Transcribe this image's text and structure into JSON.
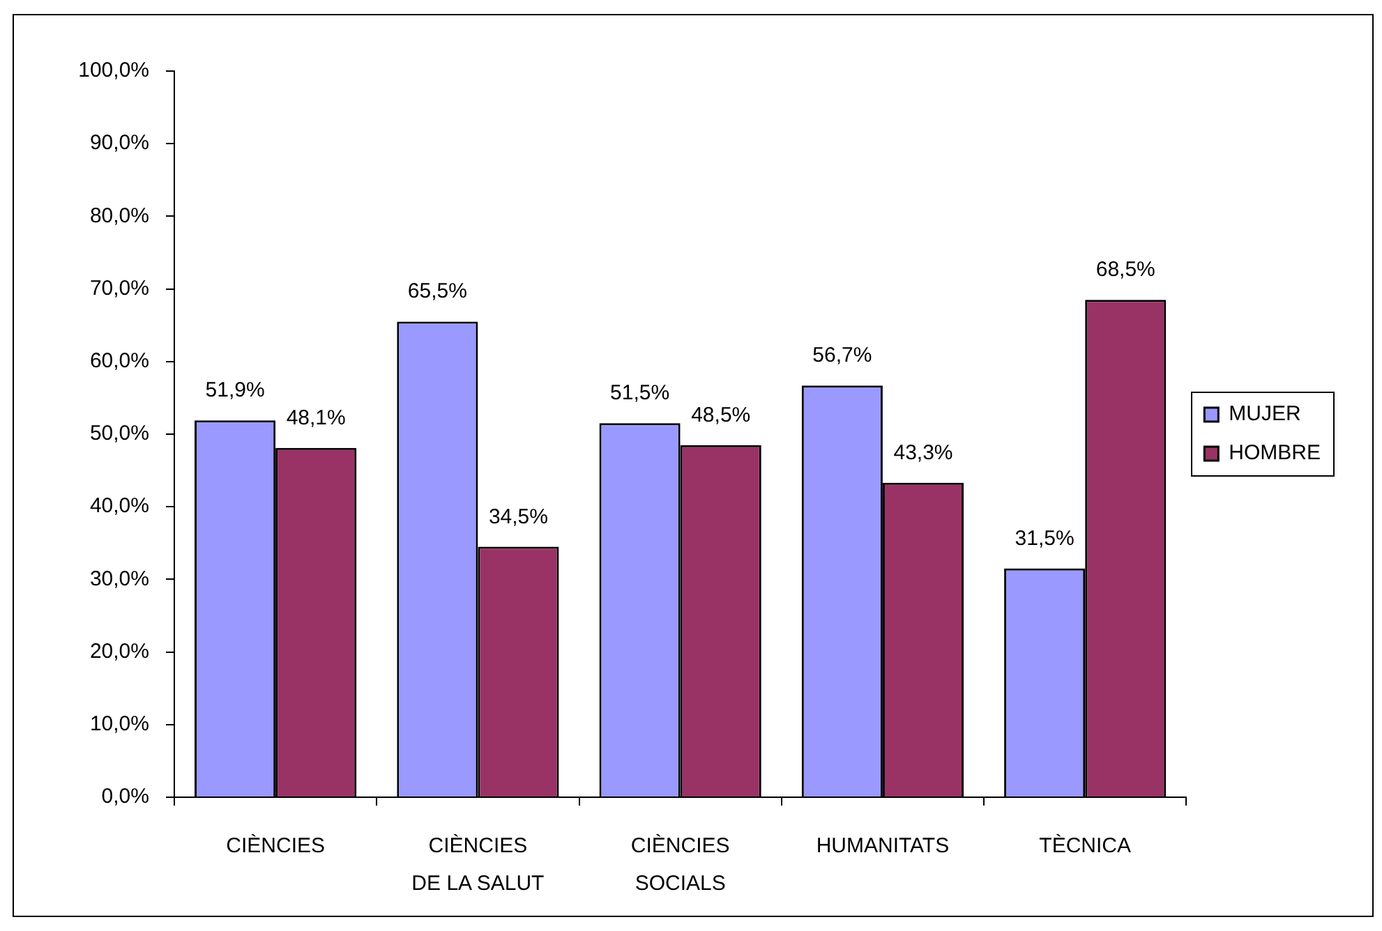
{
  "chart_data": {
    "type": "bar",
    "categories": [
      "CIÈNCIES",
      "CIÈNCIES\nDE LA SALUT",
      "CIÈNCIES\nSOCIALS",
      "HUMANITATS",
      "TÈCNICA"
    ],
    "series": [
      {
        "name": "MUJER",
        "color": "#9999ff",
        "values": [
          51.9,
          65.5,
          51.5,
          56.7,
          31.5
        ],
        "value_labels": [
          "51,9%",
          "65,5%",
          "51,5%",
          "56,7%",
          "31,5%"
        ]
      },
      {
        "name": "HOMBRE",
        "color": "#993366",
        "values": [
          48.1,
          34.5,
          48.5,
          43.3,
          68.5
        ],
        "value_labels": [
          "48,1%",
          "34,5%",
          "48,5%",
          "43,3%",
          "68,5%"
        ]
      }
    ],
    "ylim": [
      0,
      100
    ],
    "yticks": [
      {
        "value": 0,
        "label": "0,0%"
      },
      {
        "value": 10,
        "label": "10,0%"
      },
      {
        "value": 20,
        "label": "20,0%"
      },
      {
        "value": 30,
        "label": "30,0%"
      },
      {
        "value": 40,
        "label": "40,0%"
      },
      {
        "value": 50,
        "label": "50,0%"
      },
      {
        "value": 60,
        "label": "60,0%"
      },
      {
        "value": 70,
        "label": "70,0%"
      },
      {
        "value": 80,
        "label": "80,0%"
      },
      {
        "value": 90,
        "label": "90,0%"
      },
      {
        "value": 100,
        "label": "100,0%"
      }
    ],
    "grid": false,
    "legend": "right"
  }
}
